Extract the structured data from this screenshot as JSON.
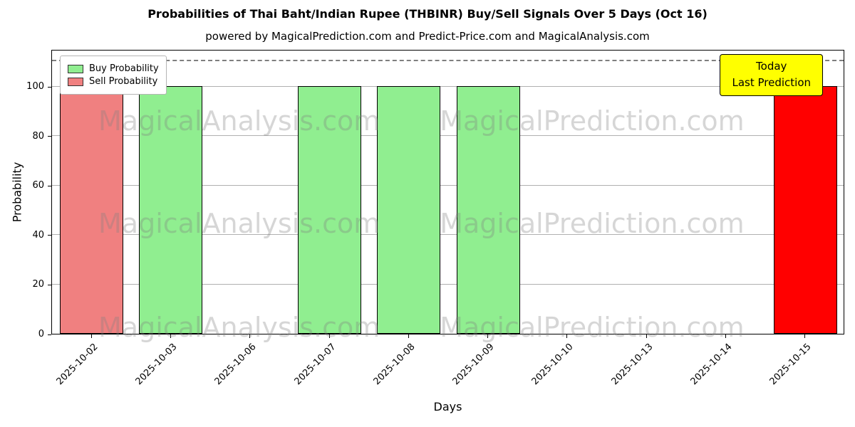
{
  "title": "Probabilities of Thai Baht/Indian Rupee (THBINR) Buy/Sell Signals Over 5 Days (Oct 16)",
  "subtitle": "powered by MagicalPrediction.com and Predict-Price.com and MagicalAnalysis.com",
  "chart_data": {
    "type": "bar",
    "title": "Probabilities of Thai Baht/Indian Rupee (THBINR) Buy/Sell Signals Over 5 Days (Oct 16)",
    "xlabel": "Days",
    "ylabel": "Probability",
    "ylim": [
      0,
      115
    ],
    "yticks": [
      0,
      20,
      40,
      60,
      80,
      100
    ],
    "dashed_line_y": 110,
    "grid": "horizontal",
    "legend_position": "upper-left",
    "categories": [
      "2025-10-02",
      "2025-10-03",
      "2025-10-06",
      "2025-10-07",
      "2025-10-08",
      "2025-10-09",
      "2025-10-10",
      "2025-10-13",
      "2025-10-14",
      "2025-10-15"
    ],
    "bars": [
      {
        "category": "2025-10-02",
        "value": 100,
        "series": "Sell Probability",
        "color": "#f08080"
      },
      {
        "category": "2025-10-03",
        "value": 100,
        "series": "Buy Probability",
        "color": "#90ee90"
      },
      {
        "category": "2025-10-06",
        "value": 0,
        "series": "",
        "color": ""
      },
      {
        "category": "2025-10-07",
        "value": 100,
        "series": "Buy Probability",
        "color": "#90ee90"
      },
      {
        "category": "2025-10-08",
        "value": 100,
        "series": "Buy Probability",
        "color": "#90ee90"
      },
      {
        "category": "2025-10-09",
        "value": 100,
        "series": "Buy Probability",
        "color": "#90ee90"
      },
      {
        "category": "2025-10-10",
        "value": 0,
        "series": "",
        "color": ""
      },
      {
        "category": "2025-10-13",
        "value": 0,
        "series": "",
        "color": ""
      },
      {
        "category": "2025-10-14",
        "value": 0,
        "series": "",
        "color": ""
      },
      {
        "category": "2025-10-15",
        "value": 100,
        "series": "Sell Probability (Today)",
        "color": "#ff0000"
      }
    ],
    "legend": [
      {
        "label": "Buy Probability",
        "color": "#90ee90"
      },
      {
        "label": "Sell Probability",
        "color": "#f08080"
      }
    ],
    "annotation": {
      "lines": [
        "Today",
        "Last Prediction"
      ],
      "bg": "#ffff00"
    },
    "watermarks": [
      "MagicalAnalysis.com",
      "MagicalPrediction.com"
    ],
    "colors": {
      "grid": "#b0b0b0",
      "dashed_line": "#7f7f7f",
      "annotation_bg": "#ffff00"
    }
  }
}
